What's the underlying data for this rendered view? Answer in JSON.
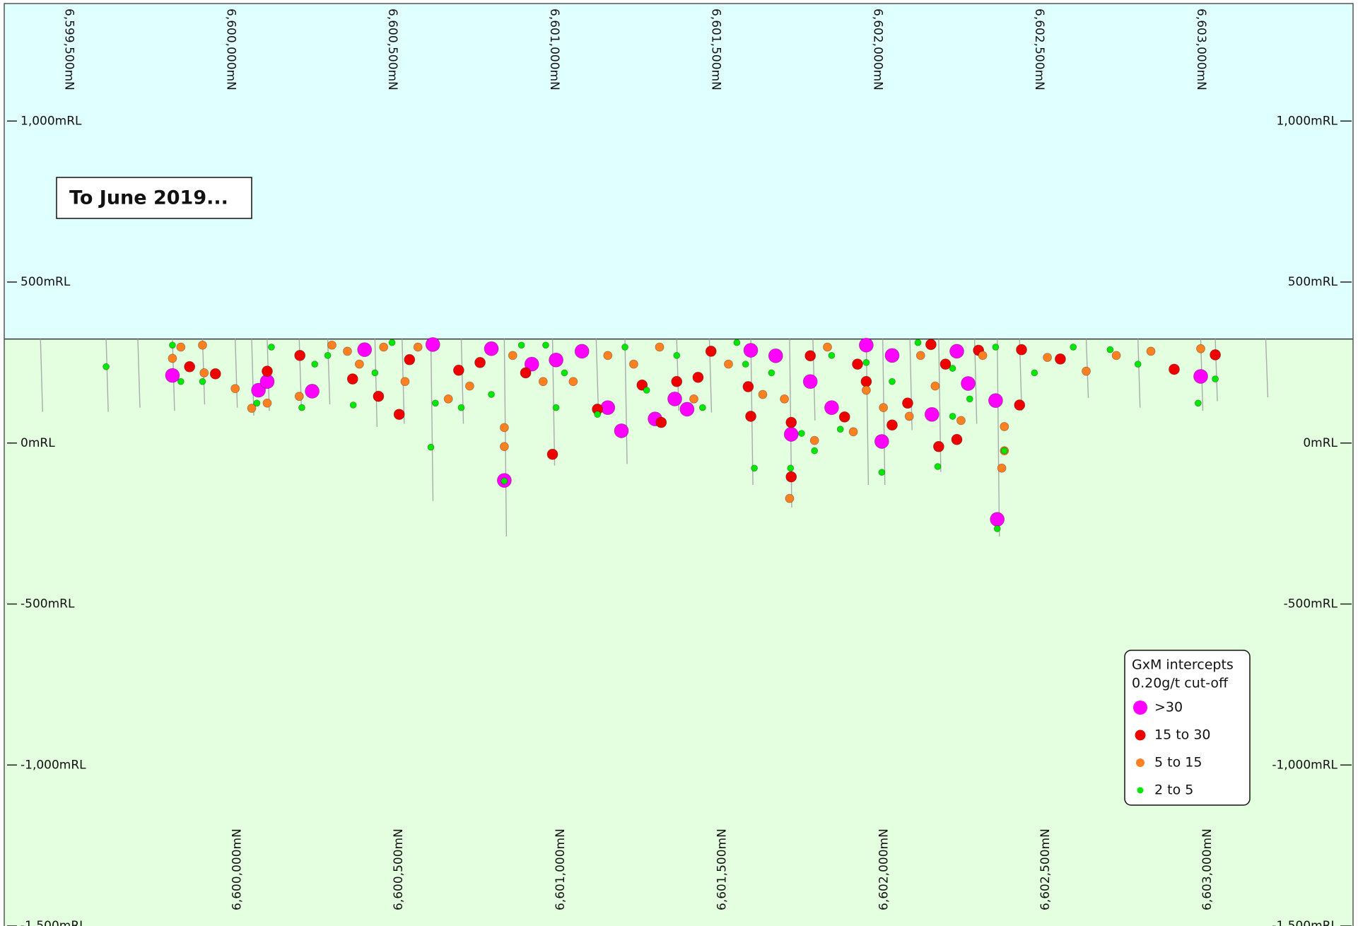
{
  "chart_data": {
    "type": "scatter",
    "annotation": "To June 2019...",
    "legend_title": [
      "GxM intercepts",
      "0.20g/t cut-off"
    ],
    "legend_position": "lower right",
    "xlim": [
      6599300,
      6603470
    ],
    "ylim": [
      -1500,
      1365
    ],
    "surface_rl": 323,
    "sky_color": "#e0ffff",
    "ground_color": "#e4ffe0",
    "xticks": [
      {
        "value": 6599500,
        "label": "6,599,500mN"
      },
      {
        "value": 6600000,
        "label": "6,600,000mN"
      },
      {
        "value": 6600500,
        "label": "6,600,500mN"
      },
      {
        "value": 6601000,
        "label": "6,601,000mN"
      },
      {
        "value": 6601500,
        "label": "6,601,500mN"
      },
      {
        "value": 6602000,
        "label": "6,602,000mN"
      },
      {
        "value": 6602500,
        "label": "6,602,500mN"
      },
      {
        "value": 6603000,
        "label": "6,603,000mN"
      }
    ],
    "x2ticks": [
      {
        "value": 6600000,
        "label": "6,600,000mN"
      },
      {
        "value": 6600500,
        "label": "6,600,500mN"
      },
      {
        "value": 6601000,
        "label": "6,601,000mN"
      },
      {
        "value": 6601500,
        "label": "6,601,500mN"
      },
      {
        "value": 6602000,
        "label": "6,602,000mN"
      },
      {
        "value": 6602500,
        "label": "6,602,500mN"
      },
      {
        "value": 6603000,
        "label": "6,603,000mN"
      }
    ],
    "yticks": [
      {
        "value": 1000,
        "label": "1,000mRL"
      },
      {
        "value": 500,
        "label": "500mRL"
      },
      {
        "value": 0,
        "label": "0mRL"
      },
      {
        "value": -500,
        "label": "-500mRL"
      },
      {
        "value": -1000,
        "label": "-1,000mRL"
      },
      {
        "value": -1500,
        "label": "-1,500mRL"
      }
    ],
    "drillholes": {
      "x": [
        6599412,
        6599615,
        6599713,
        6599820,
        6599913,
        6600014,
        6600065,
        6600113,
        6600212,
        6600300,
        6600446,
        6600530,
        6600619,
        6600713,
        6600846,
        6600995,
        6601130,
        6601219,
        6601379,
        6601480,
        6601608,
        6601728,
        6601800,
        6601965,
        6602016,
        6602100,
        6602189,
        6602300,
        6602370,
        6602439,
        6602645,
        6602805,
        6602999,
        6603044,
        6603200
      ],
      "bottom": [
        97,
        97,
        110,
        100,
        120,
        110,
        85,
        100,
        110,
        120,
        50,
        60,
        -180,
        60,
        -290,
        -70,
        110,
        -65,
        100,
        95,
        -130,
        -200,
        70,
        -130,
        -130,
        40,
        -90,
        60,
        -290,
        100,
        140,
        110,
        100,
        130,
        142
      ]
    },
    "series": [
      {
        "name": ">30",
        "color": "#ff00ff",
        "marker_size": 10,
        "x": [
          6599820,
          6600086,
          6600113,
          6600252,
          6600414,
          6600625,
          6600806,
          6600846,
          6600931,
          6601006,
          6601086,
          6601166,
          6601208,
          6601312,
          6601373,
          6601411,
          6601608,
          6601685,
          6601733,
          6601792,
          6601858,
          6601965,
          6602013,
          6602045,
          6602168,
          6602245,
          6602280,
          6602365,
          6602370,
          6602999
        ],
        "values": [
          210,
          164,
          191,
          161,
          290,
          306,
          293,
          -116,
          245,
          258,
          285,
          110,
          38,
          75,
          137,
          105,
          288,
          271,
          27,
          191,
          110,
          304,
          5,
          272,
          89,
          285,
          185,
          132,
          -237,
          207
        ]
      },
      {
        "name": "15 to 30",
        "color": "#ee0000",
        "marker_size": 7.5,
        "x": [
          6599873,
          6599953,
          6600113,
          6600214,
          6600377,
          6600457,
          6600521,
          6600553,
          6600705,
          6600771,
          6600912,
          6600995,
          6601134,
          6601272,
          6601331,
          6601445,
          6601485,
          6601600,
          6601608,
          6601733,
          6601733,
          6601792,
          6601898,
          6601938,
          6602045,
          6602093,
          6602165,
          6602189,
          6602245,
          6602312,
          6602445,
          6602439,
          6602565,
          6602917,
          6603044,
          6602210,
          6601965,
          6601379
        ],
        "values": [
          237,
          215,
          223,
          272,
          199,
          145,
          89,
          259,
          226,
          250,
          218,
          -35,
          105,
          180,
          64,
          204,
          285,
          175,
          83,
          64,
          -105,
          271,
          81,
          245,
          56,
          124,
          306,
          -11,
          11,
          288,
          290,
          118,
          261,
          229,
          274,
          245,
          191,
          191
        ]
      },
      {
        "name": "5 to 15",
        "color": "#ff8020",
        "marker_size": 6,
        "x": [
          6599820,
          6599846,
          6599913,
          6599918,
          6600014,
          6600065,
          6600113,
          6600212,
          6600313,
          6600361,
          6600398,
          6600473,
          6600539,
          6600579,
          6600673,
          6600739,
          6600846,
          6600846,
          6600872,
          6600966,
          6601059,
          6601166,
          6601246,
          6601326,
          6601432,
          6601539,
          6601645,
          6601712,
          6601728,
          6601805,
          6601845,
          6601925,
          6601965,
          6602018,
          6602098,
          6602178,
          6602258,
          6602325,
          6602392,
          6602392,
          6602384,
          6602525,
          6602645,
          6602738,
          6602845,
          6602999,
          6602133
        ],
        "values": [
          263,
          298,
          304,
          218,
          169,
          108,
          124,
          145,
          304,
          285,
          245,
          298,
          191,
          298,
          137,
          177,
          48,
          -11,
          272,
          191,
          191,
          272,
          245,
          298,
          137,
          245,
          151,
          137,
          -172,
          8,
          298,
          35,
          164,
          110,
          83,
          177,
          70,
          272,
          51,
          -24,
          -78,
          266,
          223,
          272,
          285,
          293,
          272
        ]
      },
      {
        "name": "2 to 5",
        "color": "#00e800",
        "marker_size": 4.5,
        "x": [
          6599615,
          6599820,
          6599846,
          6599913,
          6600081,
          6600126,
          6600220,
          6600260,
          6600300,
          6600379,
          6600446,
          6600499,
          6600619,
          6600633,
          6600713,
          6600806,
          6600846,
          6600899,
          6600974,
          6601032,
          6601134,
          6601219,
          6601286,
          6601379,
          6601459,
          6601565,
          6601619,
          6601672,
          6601731,
          6601765,
          6601805,
          6601858,
          6601885,
          6601965,
          6602013,
          6602045,
          6602125,
          6602186,
          6602232,
          6602285,
          6602365,
          6602392,
          6602370,
          6602485,
          6602605,
          6602719,
          6602805,
          6602991,
          6603044,
          6602232,
          6601592,
          6601006
        ],
        "values": [
          237,
          304,
          191,
          191,
          124,
          298,
          110,
          245,
          272,
          118,
          218,
          312,
          -13,
          124,
          110,
          151,
          -118,
          304,
          304,
          218,
          89,
          298,
          164,
          272,
          110,
          312,
          -78,
          218,
          -78,
          30,
          -24,
          272,
          43,
          250,
          -91,
          191,
          312,
          -73,
          83,
          137,
          298,
          -24,
          -266,
          218,
          298,
          290,
          245,
          124,
          199,
          232,
          245,
          110
        ]
      }
    ]
  }
}
